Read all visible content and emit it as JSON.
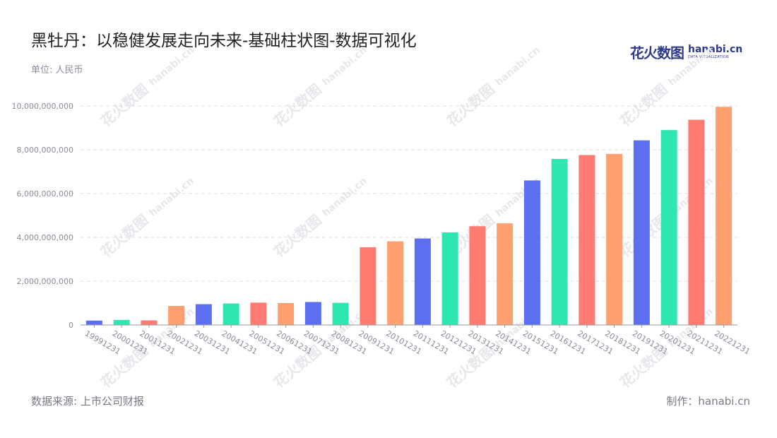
{
  "header": {
    "title": "黑牡丹：以稳健发展走向未来-基础柱状图-数据可视化",
    "unit": "单位: 人民币"
  },
  "logo": {
    "cn": "花火数图",
    "en": "hanabi.cn",
    "sub": "DATA VISUALIZATION"
  },
  "footer": {
    "source": "数据来源: 上市公司财报",
    "credit": "制作：hanabi.cn"
  },
  "colors": {
    "palette": [
      "#5b6ff0",
      "#2ee6b0",
      "#ff7b72",
      "#ffa071"
    ],
    "grid": "#dddddd",
    "axis": "#999999",
    "tick_label": "#8a8d98"
  },
  "chart_data": {
    "type": "bar",
    "categories": [
      "19991231",
      "20001231",
      "20011231",
      "20021231",
      "20031231",
      "20041231",
      "20051231",
      "20061231",
      "20071231",
      "20081231",
      "20091231",
      "20101231",
      "20111231",
      "20121231",
      "20131231",
      "20141231",
      "20151231",
      "20161231",
      "20171231",
      "20181231",
      "20191231",
      "20201231",
      "20211231",
      "20221231"
    ],
    "values": [
      200000000,
      230000000,
      210000000,
      870000000,
      950000000,
      980000000,
      1020000000,
      1000000000,
      1050000000,
      1010000000,
      3550000000,
      3820000000,
      3950000000,
      4230000000,
      4510000000,
      4640000000,
      6600000000,
      7580000000,
      7760000000,
      7810000000,
      8430000000,
      8900000000,
      9370000000,
      9960000000
    ],
    "ylim": [
      0,
      10000000000
    ],
    "yticks": [
      0,
      2000000000,
      4000000000,
      6000000000,
      8000000000,
      10000000000
    ],
    "ytick_labels": [
      "0",
      "2,000,000,000",
      "4,000,000,000",
      "6,000,000,000",
      "8,000,000,000",
      "10,000,000,000"
    ],
    "grid": true,
    "title": "黑牡丹：以稳健发展走向未来-基础柱状图-数据可视化",
    "xlabel": "",
    "ylabel": ""
  }
}
